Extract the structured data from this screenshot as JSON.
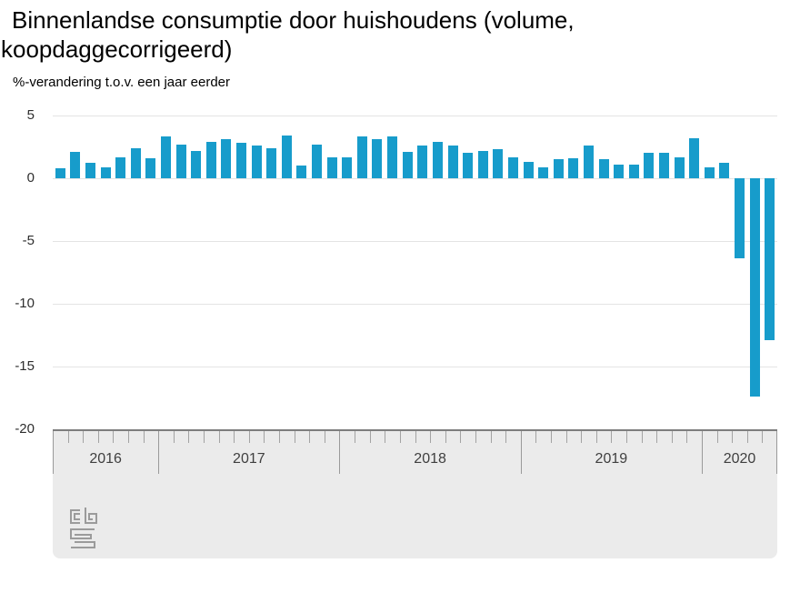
{
  "title": {
    "line1": "Binnenlandse consumptie door huishoudens (volume,",
    "line2": "koopdaggecorrigeerd)"
  },
  "subtitle": "%-verandering t.o.v. een jaar eerder",
  "colors": {
    "bar": "#179ccb",
    "gridline": "#e4e4e4",
    "axis_band_bg": "#ebebeb",
    "axis_band_border": "#7d7d7d",
    "tick": "#a3a3a3",
    "year_label_text": "#3f3f3f",
    "logo": "#9b9b9b"
  },
  "chart_data": {
    "type": "bar",
    "title": "Binnenlandse consumptie door huishoudens (volume, koopdaggecorrigeerd)",
    "ylabel": "%-verandering t.o.v. een jaar eerder",
    "xlabel": "",
    "unit": "%",
    "ylim": [
      -20,
      5
    ],
    "yticks": [
      5,
      0,
      -5,
      -10,
      -15,
      -20
    ],
    "grid": "horizontal",
    "legend": "none",
    "categories": [
      "2016-06",
      "2016-07",
      "2016-08",
      "2016-09",
      "2016-10",
      "2016-11",
      "2016-12",
      "2017-01",
      "2017-02",
      "2017-03",
      "2017-04",
      "2017-05",
      "2017-06",
      "2017-07",
      "2017-08",
      "2017-09",
      "2017-10",
      "2017-11",
      "2017-12",
      "2018-01",
      "2018-02",
      "2018-03",
      "2018-04",
      "2018-05",
      "2018-06",
      "2018-07",
      "2018-08",
      "2018-09",
      "2018-10",
      "2018-11",
      "2018-12",
      "2019-01",
      "2019-02",
      "2019-03",
      "2019-04",
      "2019-05",
      "2019-06",
      "2019-07",
      "2019-08",
      "2019-09",
      "2019-10",
      "2019-11",
      "2019-12",
      "2020-01",
      "2020-02",
      "2020-03",
      "2020-04",
      "2020-05"
    ],
    "values": [
      0.8,
      2.1,
      1.2,
      0.9,
      1.7,
      2.4,
      1.6,
      3.3,
      2.7,
      2.2,
      2.9,
      3.1,
      2.8,
      2.6,
      2.4,
      3.4,
      1.0,
      2.7,
      1.7,
      1.7,
      3.3,
      3.1,
      3.3,
      2.1,
      2.6,
      2.9,
      2.6,
      2.0,
      2.2,
      2.3,
      1.7,
      1.3,
      0.9,
      1.5,
      1.6,
      2.6,
      1.5,
      1.1,
      1.1,
      2.0,
      2.0,
      1.7,
      3.2,
      0.9,
      1.2,
      -6.4,
      -17.4,
      -12.9
    ],
    "year_labels": [
      "2016",
      "2017",
      "2018",
      "2019",
      "2020"
    ],
    "year_spans_months": [
      7,
      12,
      12,
      12,
      5
    ]
  }
}
